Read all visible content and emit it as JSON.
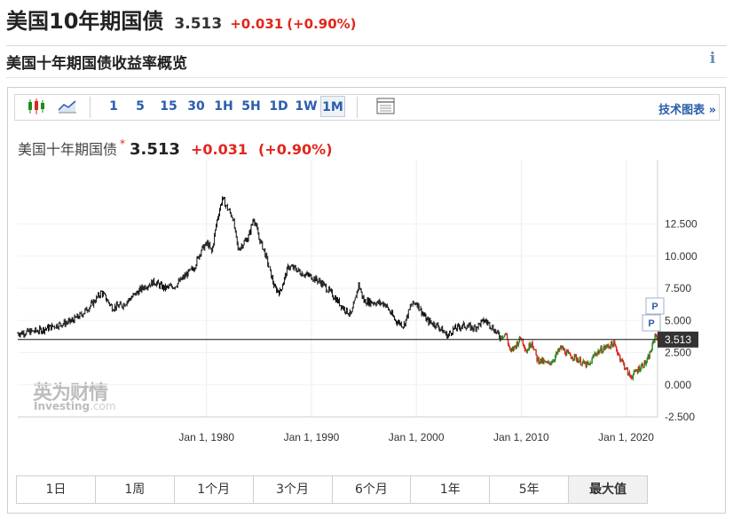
{
  "header": {
    "name": "美国10年期国债",
    "last": "3.513",
    "change": "+0.031",
    "change_pct": "(+0.90%)"
  },
  "section": {
    "title": "美国十年期国债收益率概览"
  },
  "toolbar": {
    "intervals": [
      "1",
      "5",
      "15",
      "30",
      "1H",
      "5H",
      "1D",
      "1W",
      "1M"
    ],
    "active_interval": "1M",
    "tech_link": "技术图表 »"
  },
  "legend": {
    "name": "美国十年期国债",
    "star": "*",
    "value": "3.513",
    "change": "+0.031",
    "change_pct": "(+0.90%)"
  },
  "watermark": {
    "cn": "英为财情",
    "en": "Investing",
    "suffix": ".com"
  },
  "ranges": {
    "buttons": [
      "1日",
      "1周",
      "1个月",
      "3个月",
      "6个月",
      "1年",
      "5年",
      "最大值"
    ],
    "active": "最大值"
  },
  "colors": {
    "up": "#1e8c1e",
    "down": "#d9281e",
    "accent": "#2a5dad",
    "price_label_bg": "#333333"
  },
  "chart_data": {
    "type": "line",
    "title": "",
    "xlabel": "",
    "ylabel": "",
    "x_ticks": [
      "Jan 1, 1980",
      "Jan 1, 1990",
      "Jan 1, 2000",
      "Jan 1, 2010",
      "Jan 1, 2020"
    ],
    "y_ticks": [
      "12.500",
      "10.000",
      "7.500",
      "5.000",
      "2.500",
      "0.000",
      "-2.500"
    ],
    "ylim": [
      -2.5,
      17.5
    ],
    "xlim": [
      1962,
      2023
    ],
    "current_value": 3.513,
    "current_label": "3.513",
    "marker_labels": [
      "P",
      "P"
    ],
    "series": [
      {
        "name": "美国十年期国债",
        "x": [
          1962,
          1964,
          1966,
          1967,
          1968,
          1969,
          1970,
          1971,
          1972,
          1973,
          1974,
          1975,
          1976,
          1977,
          1978,
          1978.8,
          1979.5,
          1980.1,
          1980.5,
          1981.0,
          1981.5,
          1981.8,
          1982.5,
          1983.0,
          1984.0,
          1984.5,
          1985.0,
          1985.5,
          1986.0,
          1986.5,
          1987.0,
          1987.8,
          1988.5,
          1989.0,
          1990.0,
          1991.0,
          1992.0,
          1993.0,
          1993.8,
          1994.5,
          1995.0,
          1996.0,
          1997.0,
          1998.0,
          1998.8,
          1999.5,
          2000.0,
          2001.0,
          2002.0,
          2003.0,
          2003.5,
          2004.5,
          2005.5,
          2006.5,
          2007.0,
          2008.0,
          2008.5,
          2009.0,
          2010.0,
          2010.5,
          2011.0,
          2011.5,
          2012.5,
          2013.0,
          2013.8,
          2014.5,
          2015.0,
          2016.0,
          2016.5,
          2017.0,
          2018.0,
          2018.8,
          2019.5,
          2020.3,
          2020.6,
          2021.0,
          2021.5,
          2022.0,
          2022.5,
          2022.8,
          2023.0
        ],
        "y": [
          4.0,
          4.2,
          4.7,
          4.9,
          5.4,
          6.2,
          7.2,
          6.0,
          6.2,
          6.9,
          7.6,
          8.0,
          7.5,
          7.7,
          8.5,
          9.1,
          10.5,
          11.0,
          10.3,
          12.8,
          14.5,
          14.0,
          13.0,
          10.5,
          11.5,
          13.0,
          11.4,
          10.4,
          9.0,
          7.5,
          7.2,
          9.2,
          9.0,
          8.7,
          8.4,
          7.9,
          7.0,
          6.0,
          5.4,
          7.8,
          6.5,
          6.4,
          6.3,
          5.0,
          4.6,
          6.2,
          6.4,
          5.0,
          4.6,
          3.8,
          4.3,
          4.6,
          4.4,
          5.0,
          4.7,
          3.7,
          4.0,
          2.5,
          3.7,
          2.6,
          3.4,
          2.0,
          1.6,
          1.9,
          2.9,
          2.3,
          2.2,
          1.6,
          1.5,
          2.4,
          2.9,
          3.2,
          2.0,
          0.7,
          0.7,
          1.1,
          1.5,
          1.8,
          3.0,
          4.0,
          3.5
        ]
      }
    ]
  }
}
